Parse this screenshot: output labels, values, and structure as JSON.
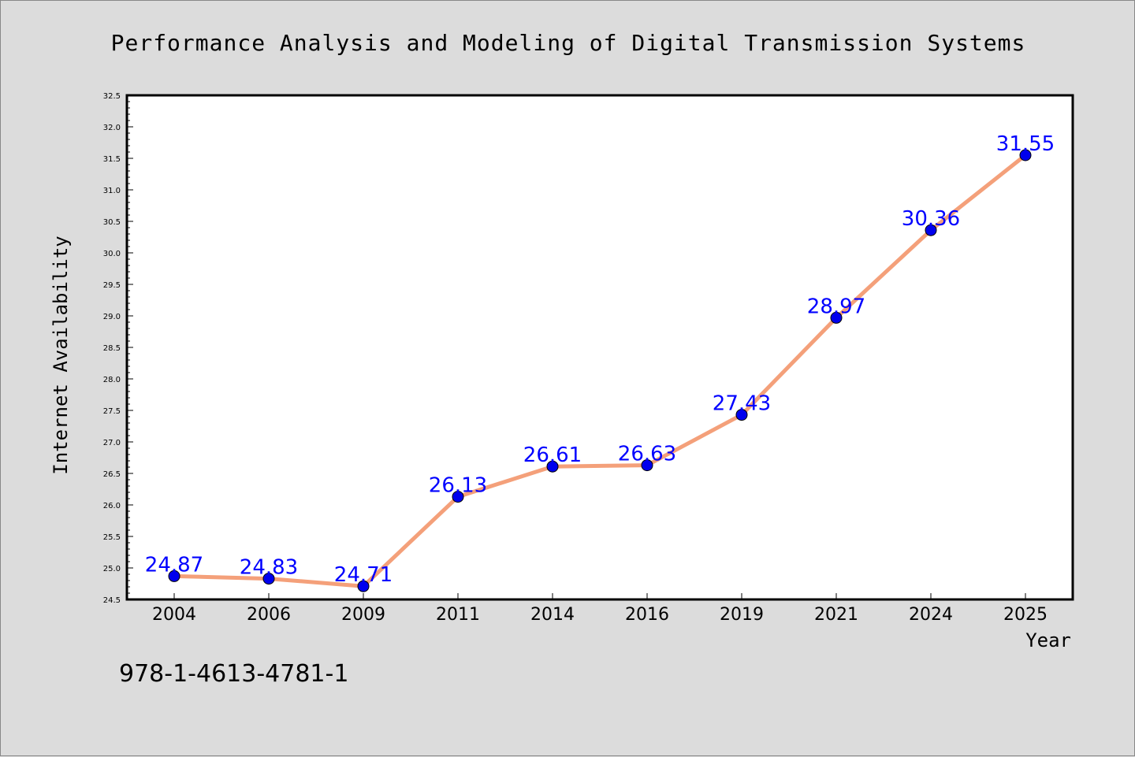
{
  "chart_data": {
    "type": "line",
    "title": "Performance Analysis and Modeling of Digital Transmission Systems",
    "xlabel": "Year",
    "ylabel": "Internet Availability",
    "categories": [
      "2004",
      "2006",
      "2009",
      "2011",
      "2014",
      "2016",
      "2019",
      "2021",
      "2024",
      "2025"
    ],
    "series": [
      {
        "values": [
          24.87,
          24.83,
          24.71,
          26.13,
          26.61,
          26.63,
          27.43,
          28.97,
          30.36,
          31.55
        ],
        "value_labels": [
          "24.87",
          "24.83",
          "24.71",
          "26.13",
          "26.61",
          "26.63",
          "27.43",
          "28.97",
          "30.36",
          "31.55"
        ],
        "line_color": "#f4a07a",
        "marker_color": "#0000ee"
      }
    ],
    "ylim": [
      24.5,
      32.5
    ],
    "yticks": [
      "24.5",
      "25.0",
      "25.5",
      "26.0",
      "26.5",
      "27.0",
      "27.5",
      "28.0",
      "28.5",
      "29.0",
      "29.5",
      "30.0",
      "30.5",
      "31.0",
      "31.5",
      "32.0",
      "32.5"
    ],
    "grid": false,
    "label_color": "#0000ff"
  },
  "footer": {
    "isbn": "978-1-4613-4781-1"
  }
}
